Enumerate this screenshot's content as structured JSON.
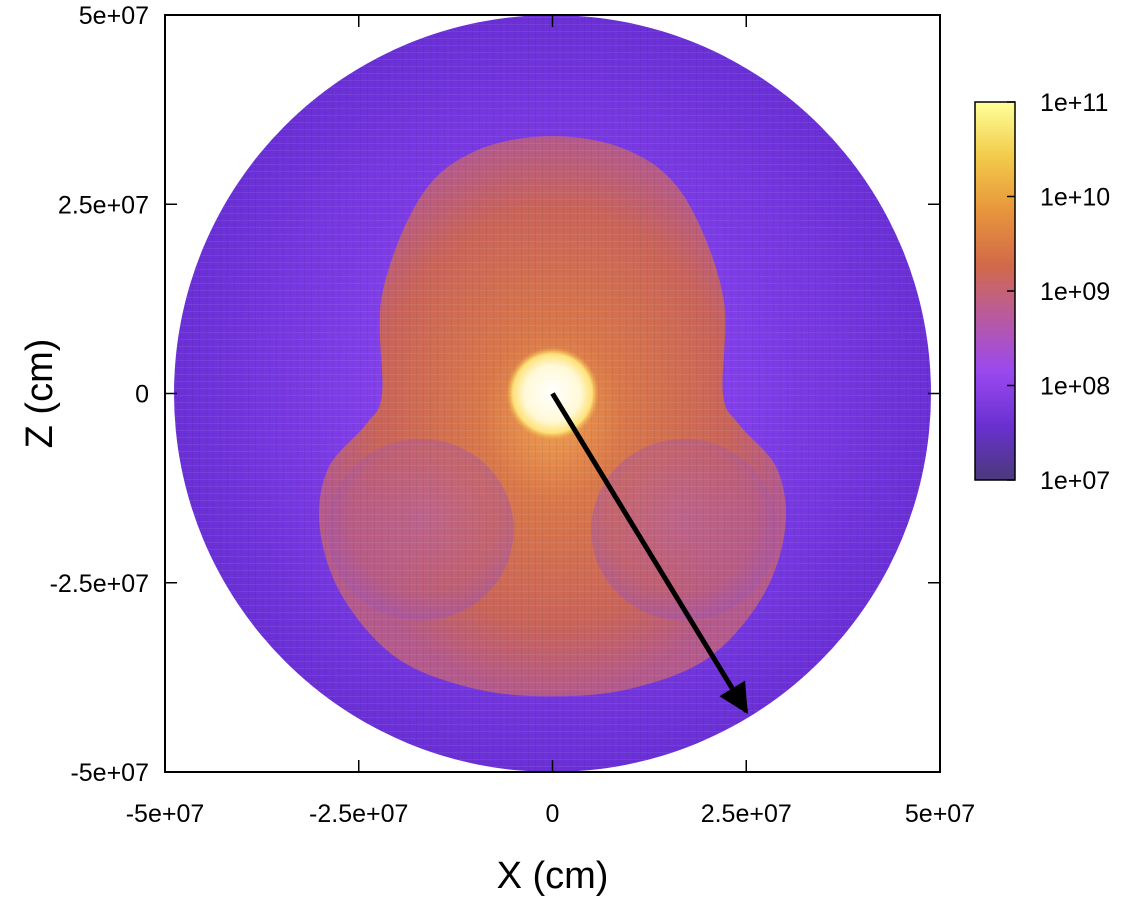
{
  "chart_data": {
    "type": "heatmap",
    "plot": "polar-grid colour map in the X-Z plane, log colour scale",
    "xlabel": "X (cm)",
    "ylabel": "Z (cm)",
    "xlim": [
      -50000000,
      50000000
    ],
    "ylim": [
      -50000000,
      50000000
    ],
    "xticks": [
      {
        "value": -50000000,
        "label": "-5e+07"
      },
      {
        "value": -25000000,
        "label": "-2.5e+07"
      },
      {
        "value": 0,
        "label": "0"
      },
      {
        "value": 25000000,
        "label": "2.5e+07"
      },
      {
        "value": 50000000,
        "label": "5e+07"
      }
    ],
    "yticks": [
      {
        "value": 50000000,
        "label": "5e+07"
      },
      {
        "value": 25000000,
        "label": "2.5e+07"
      },
      {
        "value": 0,
        "label": "0"
      },
      {
        "value": -25000000,
        "label": "-2.5e+07"
      },
      {
        "value": -50000000,
        "label": "-5e+07"
      }
    ],
    "colorbar": {
      "scale": "log",
      "range": [
        10000000,
        100000000000
      ],
      "ticks": [
        {
          "value": 100000000000,
          "label": "1e+11"
        },
        {
          "value": 10000000000,
          "label": "1e+10"
        },
        {
          "value": 1000000000,
          "label": "1e+09"
        },
        {
          "value": 100000000,
          "label": "1e+08"
        },
        {
          "value": 10000000,
          "label": "1e+07"
        }
      ],
      "colors": [
        "#4a3a7a",
        "#6a30d0",
        "#9a48f0",
        "#b85aa0",
        "#d26a48",
        "#e8963c",
        "#f2cc4a",
        "#ffff9a"
      ]
    },
    "regions": {
      "domain_radius": 50000000,
      "core_radius": 6000000,
      "core_color": "#fffbe6",
      "outer_color": "#7a3ce0",
      "shocked_color": "#c46a68"
    },
    "arrow": {
      "from": [
        0,
        0
      ],
      "to": [
        25000000,
        -42000000
      ],
      "color": "#000000"
    }
  }
}
